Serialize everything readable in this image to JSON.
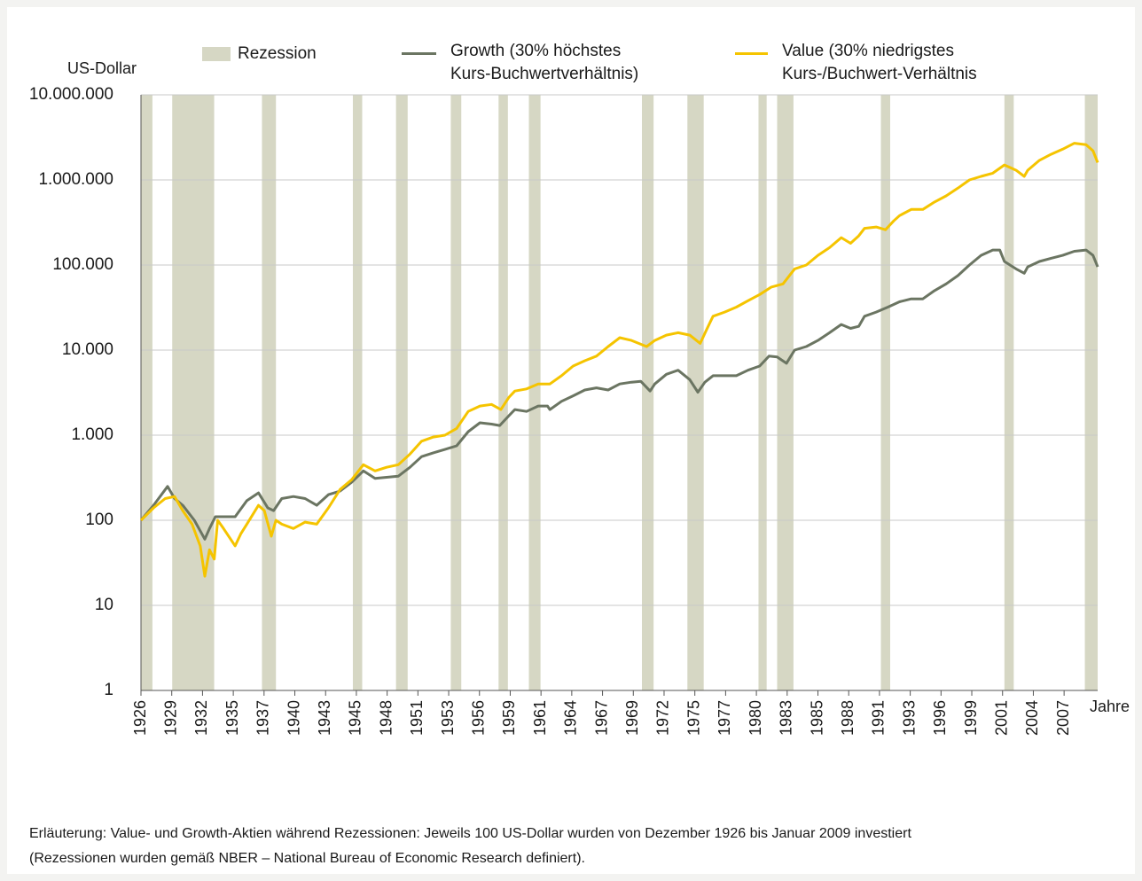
{
  "chart_data": {
    "type": "line",
    "y_label": "US-Dollar",
    "x_label": "Jahre",
    "log_y": true,
    "grid": true,
    "ylim": [
      1,
      10000000
    ],
    "yticks": [
      1,
      10,
      100,
      {
        "value": 1000,
        "label": "1.000"
      },
      {
        "value": 10000,
        "label": "10.000"
      },
      {
        "value": 100000,
        "label": "100.000"
      },
      {
        "value": 1000000,
        "label": "1.000.000"
      },
      {
        "value": 10000000,
        "label": "10.000.000"
      }
    ],
    "xlim": [
      1926.92,
      2009.0
    ],
    "xticks": [
      {
        "value": 1926.92,
        "label": "1926"
      },
      {
        "value": 1929.56,
        "label": "1929"
      },
      {
        "value": 1932.2,
        "label": "1932"
      },
      {
        "value": 1934.84,
        "label": "1935"
      },
      {
        "value": 1937.48,
        "label": "1937"
      },
      {
        "value": 1940.12,
        "label": "1940"
      },
      {
        "value": 1942.76,
        "label": "1943"
      },
      {
        "value": 1945.4,
        "label": "1945"
      },
      {
        "value": 1948.04,
        "label": "1948"
      },
      {
        "value": 1950.68,
        "label": "1951"
      },
      {
        "value": 1953.32,
        "label": "1953"
      },
      {
        "value": 1955.96,
        "label": "1956"
      },
      {
        "value": 1958.6,
        "label": "1959"
      },
      {
        "value": 1961.24,
        "label": "1961"
      },
      {
        "value": 1963.88,
        "label": "1964"
      },
      {
        "value": 1966.52,
        "label": "1967"
      },
      {
        "value": 1969.16,
        "label": "1969"
      },
      {
        "value": 1971.8,
        "label": "1972"
      },
      {
        "value": 1974.44,
        "label": "1975"
      },
      {
        "value": 1977.08,
        "label": "1977"
      },
      {
        "value": 1979.72,
        "label": "1980"
      },
      {
        "value": 1982.36,
        "label": "1983"
      },
      {
        "value": 1985.0,
        "label": "1985"
      },
      {
        "value": 1987.64,
        "label": "1988"
      },
      {
        "value": 1990.28,
        "label": "1991"
      },
      {
        "value": 1992.92,
        "label": "1993"
      },
      {
        "value": 1995.56,
        "label": "1996"
      },
      {
        "value": 1998.2,
        "label": "1999"
      },
      {
        "value": 2000.84,
        "label": "2001"
      },
      {
        "value": 2003.48,
        "label": "2004"
      },
      {
        "value": 2006.12,
        "label": "2007"
      }
    ],
    "recession_name": "Rezession",
    "recession_color": "#d6d7c4",
    "recessions": [
      [
        1926.9,
        1927.9
      ],
      [
        1929.6,
        1933.2
      ],
      [
        1937.3,
        1938.5
      ],
      [
        1945.1,
        1945.9
      ],
      [
        1948.8,
        1949.8
      ],
      [
        1953.5,
        1954.4
      ],
      [
        1957.6,
        1958.4
      ],
      [
        1960.2,
        1961.2
      ],
      [
        1969.9,
        1970.9
      ],
      [
        1973.8,
        1975.2
      ],
      [
        1979.9,
        1980.6
      ],
      [
        1981.5,
        1982.9
      ],
      [
        1990.4,
        1991.2
      ],
      [
        2001.0,
        2001.8
      ],
      [
        2007.9,
        2009.0
      ]
    ],
    "series": [
      {
        "name": "Growth (30% höchstes Kurs-Buchwertverhältnis)",
        "color": "#6b7562",
        "x": [
          1926.92,
          1928,
          1929.2,
          1929.8,
          1930.5,
          1931.5,
          1932.4,
          1932.8,
          1933.3,
          1934,
          1935,
          1936,
          1937,
          1937.8,
          1938.3,
          1939,
          1940,
          1941,
          1942,
          1943,
          1944,
          1945,
          1946,
          1947,
          1948,
          1949,
          1950,
          1951,
          1952,
          1953,
          1954,
          1955,
          1956,
          1957,
          1957.7,
          1958.5,
          1959,
          1960,
          1961,
          1961.8,
          1962,
          1963,
          1964,
          1965,
          1966,
          1967,
          1968,
          1969,
          1969.8,
          1970.6,
          1971,
          1972,
          1973,
          1974,
          1974.7,
          1975.3,
          1976,
          1977,
          1978,
          1979,
          1980,
          1980.8,
          1981.5,
          1982.3,
          1983,
          1984,
          1985,
          1986,
          1987,
          1987.8,
          1988.5,
          1989,
          1990,
          1991,
          1992,
          1993,
          1994,
          1995,
          1996,
          1997,
          1998,
          1999,
          2000,
          2000.6,
          2001,
          2002,
          2002.7,
          2003,
          2004,
          2005,
          2006,
          2007,
          2008,
          2008.6,
          2009
        ],
        "values": [
          100,
          150,
          250,
          180,
          150,
          100,
          60,
          80,
          110,
          110,
          110,
          170,
          210,
          140,
          130,
          180,
          190,
          180,
          150,
          200,
          220,
          280,
          380,
          310,
          320,
          330,
          420,
          560,
          620,
          680,
          750,
          1100,
          1400,
          1350,
          1300,
          1700,
          2000,
          1900,
          2200,
          2200,
          2000,
          2500,
          2900,
          3400,
          3600,
          3400,
          4000,
          4200,
          4300,
          3300,
          4000,
          5200,
          5800,
          4500,
          3200,
          4200,
          5000,
          5000,
          5000,
          5800,
          6500,
          8500,
          8300,
          7000,
          10000,
          11000,
          13000,
          16000,
          20000,
          18000,
          19000,
          25000,
          28000,
          32000,
          37000,
          40000,
          40000,
          50000,
          60000,
          75000,
          100000,
          130000,
          150000,
          150000,
          110000,
          90000,
          80000,
          95000,
          110000,
          120000,
          130000,
          145000,
          150000,
          130000,
          95000
        ]
      },
      {
        "name": "Value (30% niedrigstes Kurs-/Buchwert-Verhältnis",
        "color": "#f5c400",
        "x": [
          1926.92,
          1928,
          1929,
          1929.8,
          1930.5,
          1931.3,
          1932,
          1932.4,
          1932.8,
          1933.2,
          1933.5,
          1934,
          1935,
          1935.5,
          1936,
          1937,
          1937.5,
          1938.1,
          1938.5,
          1939,
          1940,
          1941,
          1942,
          1943,
          1944,
          1945,
          1946,
          1947,
          1948,
          1949,
          1950,
          1951,
          1952,
          1953,
          1954,
          1955,
          1956,
          1957,
          1957.8,
          1958.5,
          1959,
          1960,
          1961,
          1962,
          1963,
          1964,
          1965,
          1966,
          1967,
          1968,
          1969,
          1970.3,
          1971,
          1972,
          1973,
          1974,
          1974.9,
          1975.5,
          1976,
          1977,
          1978,
          1979,
          1980,
          1981,
          1982,
          1983,
          1984,
          1985,
          1986,
          1987,
          1987.8,
          1988.5,
          1989,
          1990,
          1990.8,
          1991.5,
          1992,
          1993,
          1994,
          1995,
          1996,
          1997,
          1998,
          1999,
          2000,
          2001,
          2002,
          2002.7,
          2003,
          2004,
          2005,
          2006,
          2007,
          2008,
          2008.6,
          2009
        ],
        "values": [
          100,
          140,
          180,
          190,
          130,
          90,
          50,
          22,
          45,
          35,
          100,
          80,
          50,
          70,
          90,
          150,
          130,
          65,
          100,
          90,
          80,
          95,
          90,
          140,
          230,
          300,
          450,
          380,
          420,
          450,
          600,
          850,
          950,
          1000,
          1200,
          1900,
          2200,
          2300,
          2000,
          2800,
          3300,
          3500,
          4000,
          4000,
          5000,
          6500,
          7500,
          8500,
          11000,
          14000,
          13000,
          11000,
          13000,
          15000,
          16000,
          15000,
          12000,
          18000,
          25000,
          28000,
          32000,
          38000,
          45000,
          55000,
          60000,
          90000,
          100000,
          130000,
          160000,
          210000,
          180000,
          220000,
          270000,
          280000,
          260000,
          330000,
          380000,
          450000,
          450000,
          550000,
          650000,
          800000,
          1000000,
          1100000,
          1200000,
          1500000,
          1300000,
          1100000,
          1300000,
          1700000,
          2000000,
          2300000,
          2700000,
          2600000,
          2200000,
          1600000
        ]
      }
    ],
    "notes": [
      "Erläuterung: Value- und Growth-Aktien während Rezessionen: Jeweils 100 US-Dollar wurden von Dezember 1926 bis Januar 2009 investiert",
      "(Rezessionen wurden gemäß NBER – National Bureau of Economic Research definiert)."
    ]
  }
}
